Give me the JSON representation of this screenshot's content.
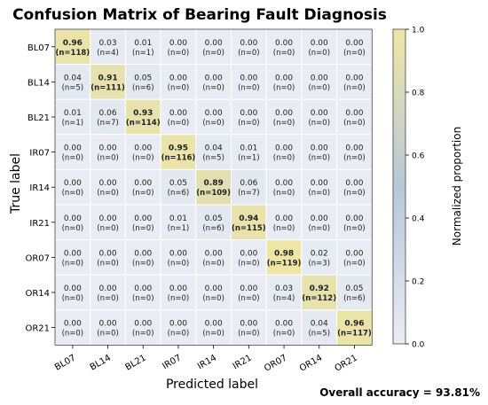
{
  "chart_data": {
    "type": "heatmap",
    "title": "Confusion Matrix of Bearing Fault Diagnosis",
    "xlabel": "Predicted label",
    "ylabel": "True label",
    "colorbar_label": "Normalized proportion",
    "colorbar_ticks": [
      "0.0",
      "0.2",
      "0.4",
      "0.6",
      "0.8",
      "1.0"
    ],
    "colorbar_range": [
      0.0,
      1.0
    ],
    "categories": [
      "BL07",
      "BL14",
      "BL21",
      "IR07",
      "IR14",
      "IR21",
      "OR07",
      "OR14",
      "OR21"
    ],
    "matrix": [
      [
        0.96,
        0.03,
        0.01,
        0.0,
        0.0,
        0.0,
        0.0,
        0.0,
        0.0
      ],
      [
        0.04,
        0.91,
        0.05,
        0.0,
        0.0,
        0.0,
        0.0,
        0.0,
        0.0
      ],
      [
        0.01,
        0.06,
        0.93,
        0.0,
        0.0,
        0.0,
        0.0,
        0.0,
        0.0
      ],
      [
        0.0,
        0.0,
        0.0,
        0.95,
        0.04,
        0.01,
        0.0,
        0.0,
        0.0
      ],
      [
        0.0,
        0.0,
        0.0,
        0.05,
        0.89,
        0.06,
        0.0,
        0.0,
        0.0
      ],
      [
        0.0,
        0.0,
        0.0,
        0.01,
        0.05,
        0.94,
        0.0,
        0.0,
        0.0
      ],
      [
        0.0,
        0.0,
        0.0,
        0.0,
        0.0,
        0.0,
        0.98,
        0.02,
        0.0
      ],
      [
        0.0,
        0.0,
        0.0,
        0.0,
        0.0,
        0.0,
        0.03,
        0.92,
        0.05
      ],
      [
        0.0,
        0.0,
        0.0,
        0.0,
        0.0,
        0.0,
        0.0,
        0.04,
        0.96
      ]
    ],
    "counts": [
      [
        118,
        4,
        1,
        0,
        0,
        0,
        0,
        0,
        0
      ],
      [
        5,
        111,
        6,
        0,
        0,
        0,
        0,
        0,
        0
      ],
      [
        1,
        7,
        114,
        0,
        0,
        0,
        0,
        0,
        0
      ],
      [
        0,
        0,
        0,
        116,
        5,
        1,
        0,
        0,
        0
      ],
      [
        0,
        0,
        0,
        6,
        109,
        7,
        0,
        0,
        0
      ],
      [
        0,
        0,
        0,
        1,
        6,
        115,
        0,
        0,
        0
      ],
      [
        0,
        0,
        0,
        0,
        0,
        0,
        119,
        3,
        0
      ],
      [
        0,
        0,
        0,
        0,
        0,
        0,
        4,
        112,
        6
      ],
      [
        0,
        0,
        0,
        0,
        0,
        0,
        0,
        5,
        117
      ]
    ],
    "colors": {
      "low": "#e9ecf4",
      "mid": "#b6c8d8",
      "high": "#f0e6a5"
    },
    "grid": true
  },
  "footer": {
    "accuracy": "Overall accuracy = 93.81%"
  }
}
